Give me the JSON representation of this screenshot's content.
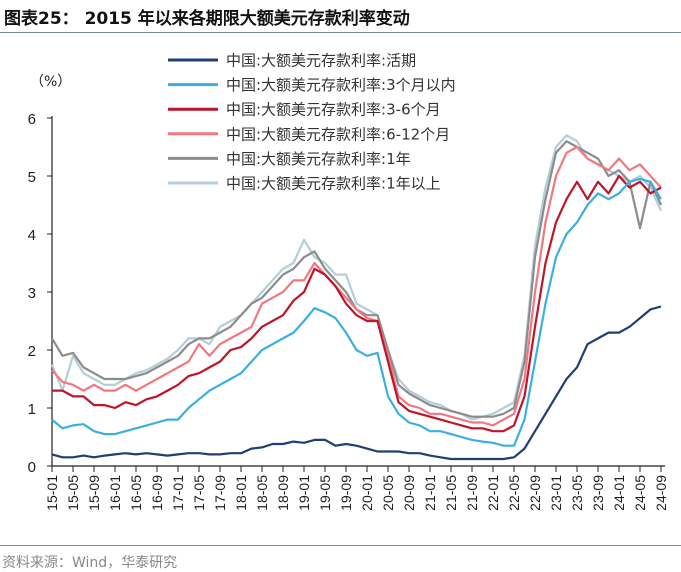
{
  "title": "图表25： 2015 年以来各期限大额美元存款利率变动",
  "source": "资料来源：Wind，华泰研究",
  "chart_data": {
    "type": "line",
    "title": "图表25： 2015 年以来各期限大额美元存款利率变动",
    "ylabel": "（%）",
    "xlabel": "",
    "ylim": [
      0,
      6
    ],
    "yticks": [
      "0",
      "1",
      "2",
      "3",
      "4",
      "5",
      "6"
    ],
    "grid": false,
    "legend_position": "top-center",
    "xtick_labels": [
      "15-01",
      "15-05",
      "15-09",
      "16-01",
      "16-05",
      "16-09",
      "17-01",
      "17-05",
      "17-09",
      "18-01",
      "18-05",
      "18-09",
      "19-01",
      "19-05",
      "19-09",
      "20-01",
      "20-05",
      "20-09",
      "21-01",
      "21-05",
      "21-09",
      "22-01",
      "22-05",
      "22-09",
      "23-01",
      "23-05",
      "23-09",
      "24-01",
      "24-05",
      "24-09"
    ],
    "x": [
      "15-01",
      "15-03",
      "15-05",
      "15-07",
      "15-09",
      "15-11",
      "16-01",
      "16-03",
      "16-05",
      "16-07",
      "16-09",
      "16-11",
      "17-01",
      "17-03",
      "17-05",
      "17-07",
      "17-09",
      "17-11",
      "18-01",
      "18-03",
      "18-05",
      "18-07",
      "18-09",
      "18-11",
      "19-01",
      "19-03",
      "19-05",
      "19-07",
      "19-09",
      "19-11",
      "20-01",
      "20-03",
      "20-05",
      "20-07",
      "20-09",
      "20-11",
      "21-01",
      "21-03",
      "21-05",
      "21-07",
      "21-09",
      "21-11",
      "22-01",
      "22-03",
      "22-05",
      "22-07",
      "22-09",
      "22-11",
      "23-01",
      "23-03",
      "23-05",
      "23-07",
      "23-09",
      "23-11",
      "24-01",
      "24-03",
      "24-05",
      "24-07",
      "24-09"
    ],
    "series": [
      {
        "name": "中国:大额美元存款利率:活期",
        "color": "#1f3f73",
        "values": [
          0.2,
          0.15,
          0.15,
          0.18,
          0.15,
          0.18,
          0.2,
          0.22,
          0.2,
          0.22,
          0.2,
          0.18,
          0.2,
          0.22,
          0.22,
          0.2,
          0.2,
          0.22,
          0.22,
          0.3,
          0.32,
          0.38,
          0.38,
          0.42,
          0.4,
          0.45,
          0.45,
          0.35,
          0.38,
          0.35,
          0.3,
          0.25,
          0.25,
          0.25,
          0.22,
          0.22,
          0.18,
          0.15,
          0.12,
          0.12,
          0.12,
          0.12,
          0.12,
          0.12,
          0.15,
          0.3,
          0.6,
          0.9,
          1.2,
          1.5,
          1.7,
          2.1,
          2.2,
          2.3,
          2.3,
          2.4,
          2.55,
          2.7,
          2.75
        ]
      },
      {
        "name": "中国:大额美元存款利率:3个月以内",
        "color": "#3bb0e0",
        "values": [
          0.8,
          0.65,
          0.7,
          0.72,
          0.6,
          0.55,
          0.55,
          0.6,
          0.65,
          0.7,
          0.75,
          0.8,
          0.8,
          1.0,
          1.15,
          1.3,
          1.4,
          1.5,
          1.6,
          1.8,
          2.0,
          2.1,
          2.2,
          2.3,
          2.5,
          2.72,
          2.65,
          2.55,
          2.3,
          2.0,
          1.9,
          1.95,
          1.2,
          0.9,
          0.75,
          0.7,
          0.6,
          0.6,
          0.55,
          0.5,
          0.45,
          0.42,
          0.4,
          0.35,
          0.35,
          0.8,
          1.8,
          2.8,
          3.6,
          4.0,
          4.2,
          4.5,
          4.7,
          4.6,
          4.7,
          4.9,
          4.95,
          4.9,
          4.6
        ]
      },
      {
        "name": "中国:大额美元存款利率:3-6个月",
        "color": "#c0142b",
        "values": [
          1.3,
          1.3,
          1.2,
          1.2,
          1.05,
          1.05,
          1.0,
          1.1,
          1.05,
          1.15,
          1.2,
          1.3,
          1.4,
          1.55,
          1.6,
          1.7,
          1.8,
          2.0,
          2.05,
          2.2,
          2.4,
          2.5,
          2.6,
          2.85,
          3.0,
          3.4,
          3.3,
          3.1,
          2.8,
          2.6,
          2.5,
          2.5,
          1.8,
          1.1,
          0.95,
          0.9,
          0.85,
          0.8,
          0.75,
          0.7,
          0.65,
          0.65,
          0.6,
          0.6,
          0.7,
          1.2,
          2.4,
          3.5,
          4.2,
          4.6,
          4.9,
          4.6,
          4.9,
          4.7,
          5.0,
          4.8,
          4.9,
          4.7,
          4.8
        ]
      },
      {
        "name": "中国:大额美元存款利率:6-12个月",
        "color": "#f07880",
        "values": [
          1.65,
          1.45,
          1.4,
          1.3,
          1.4,
          1.3,
          1.3,
          1.4,
          1.3,
          1.4,
          1.5,
          1.6,
          1.7,
          1.8,
          2.1,
          1.9,
          2.1,
          2.2,
          2.3,
          2.4,
          2.8,
          2.9,
          3.0,
          3.2,
          3.2,
          3.5,
          3.3,
          3.1,
          2.9,
          2.7,
          2.55,
          2.5,
          1.9,
          1.2,
          1.05,
          1.0,
          0.9,
          0.9,
          0.85,
          0.8,
          0.75,
          0.75,
          0.7,
          0.8,
          0.9,
          1.5,
          3.0,
          4.2,
          5.0,
          5.4,
          5.5,
          5.3,
          5.2,
          5.1,
          5.3,
          5.1,
          5.2,
          5.0,
          4.8
        ]
      },
      {
        "name": "中国:大额美元存款利率:1年",
        "color": "#8c8c8c",
        "values": [
          2.2,
          1.9,
          1.95,
          1.7,
          1.6,
          1.5,
          1.5,
          1.5,
          1.55,
          1.6,
          1.7,
          1.8,
          1.9,
          2.1,
          2.2,
          2.2,
          2.3,
          2.4,
          2.6,
          2.8,
          2.9,
          3.1,
          3.3,
          3.4,
          3.6,
          3.7,
          3.4,
          3.2,
          3.0,
          2.7,
          2.6,
          2.6,
          2.0,
          1.4,
          1.25,
          1.15,
          1.05,
          1.0,
          0.95,
          0.9,
          0.85,
          0.85,
          0.85,
          0.9,
          1.0,
          1.8,
          3.6,
          4.6,
          5.4,
          5.6,
          5.5,
          5.4,
          5.3,
          5.0,
          5.1,
          4.9,
          4.1,
          4.9,
          4.5
        ]
      },
      {
        "name": "中国:大额美元存款利率:1年以上",
        "color": "#b4cdd8",
        "values": [
          1.75,
          1.3,
          1.9,
          1.6,
          1.5,
          1.4,
          1.4,
          1.5,
          1.6,
          1.65,
          1.75,
          1.85,
          2.0,
          2.2,
          2.2,
          2.1,
          2.4,
          2.5,
          2.6,
          2.8,
          3.0,
          3.2,
          3.4,
          3.5,
          3.9,
          3.6,
          3.5,
          3.3,
          3.3,
          2.8,
          2.7,
          2.6,
          2.0,
          1.5,
          1.3,
          1.2,
          1.1,
          1.05,
          0.95,
          0.9,
          0.8,
          0.85,
          0.9,
          1.0,
          1.1,
          1.9,
          3.8,
          4.8,
          5.5,
          5.7,
          5.6,
          5.3,
          5.2,
          5.1,
          5.0,
          4.9,
          5.0,
          4.8,
          4.4
        ]
      }
    ]
  }
}
